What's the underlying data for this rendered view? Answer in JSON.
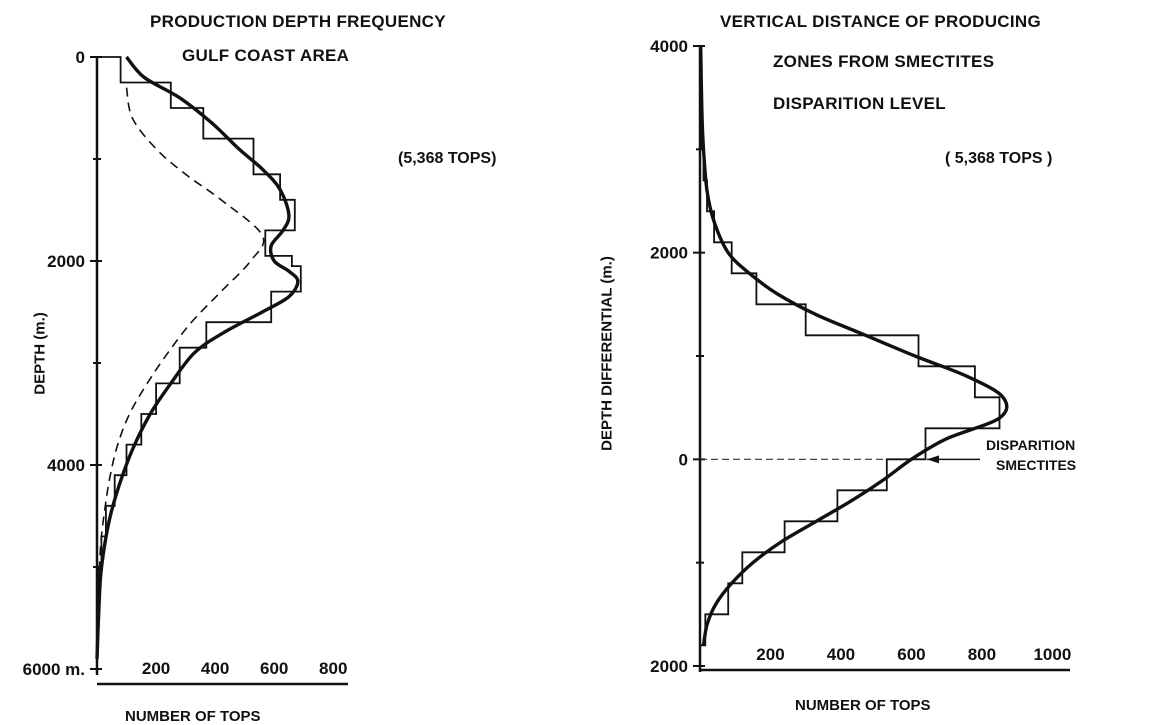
{
  "chart_data": [
    {
      "type": "line",
      "title": "PRODUCTION DEPTH FREQUENCY",
      "subtitle": "GULF COAST AREA",
      "annotation": "(5,368 TOPS)",
      "xlabel": "NUMBER OF TOPS",
      "ylabel": "DEPTH (m.)",
      "xlim": [
        0,
        850
      ],
      "ylim": [
        0,
        6000
      ],
      "y_inverted": true,
      "x_ticks": [
        200,
        400,
        600,
        800
      ],
      "y_ticks": [
        0,
        2000,
        4000,
        6000
      ],
      "y_tick_labels": [
        "0",
        "2000",
        "4000",
        "6000 m."
      ],
      "grid": false,
      "histogram": {
        "name": "",
        "bins": [
          0,
          250,
          500,
          800,
          1150,
          1400,
          1700,
          1950,
          2050,
          2300,
          2600,
          2850,
          3200,
          3500,
          3800,
          4100,
          4400,
          4700,
          5000,
          5600
        ],
        "values": [
          80,
          250,
          360,
          530,
          620,
          670,
          570,
          660,
          690,
          590,
          370,
          280,
          200,
          150,
          100,
          60,
          30,
          15,
          5
        ]
      },
      "series": [
        {
          "name": "",
          "style": "solid",
          "points": [
            [
              100,
              0
            ],
            [
              160,
              200
            ],
            [
              280,
              400
            ],
            [
              390,
              650
            ],
            [
              480,
              900
            ],
            [
              560,
              1100
            ],
            [
              620,
              1300
            ],
            [
              650,
              1550
            ],
            [
              630,
              1700
            ],
            [
              590,
              1850
            ],
            [
              600,
              2000
            ],
            [
              650,
              2100
            ],
            [
              680,
              2200
            ],
            [
              650,
              2350
            ],
            [
              560,
              2500
            ],
            [
              430,
              2700
            ],
            [
              330,
              2900
            ],
            [
              250,
              3200
            ],
            [
              180,
              3500
            ],
            [
              120,
              3850
            ],
            [
              75,
              4200
            ],
            [
              45,
              4500
            ],
            [
              25,
              4800
            ],
            [
              12,
              5100
            ],
            [
              5,
              5500
            ],
            [
              0,
              5900
            ]
          ]
        },
        {
          "name": "",
          "style": "dashed",
          "points": [
            [
              100,
              300
            ],
            [
              120,
              600
            ],
            [
              200,
              900
            ],
            [
              300,
              1150
            ],
            [
              420,
              1400
            ],
            [
              560,
              1750
            ],
            [
              520,
              2000
            ],
            [
              420,
              2300
            ],
            [
              320,
              2600
            ],
            [
              240,
              2900
            ],
            [
              170,
              3200
            ],
            [
              110,
              3500
            ],
            [
              70,
              3800
            ],
            [
              45,
              4100
            ],
            [
              28,
              4400
            ],
            [
              15,
              4700
            ],
            [
              8,
              5000
            ],
            [
              3,
              5300
            ]
          ]
        }
      ]
    },
    {
      "type": "line",
      "title": "VERTICAL DISTANCE OF PRODUCING",
      "subtitle": "ZONES FROM SMECTITES",
      "subtitle2": "DISPARITION LEVEL",
      "annotation": "( 5,368 TOPS )",
      "xlabel": "NUMBER OF TOPS",
      "ylabel": "DEPTH DIFFERENTIAL (m.)",
      "xlim": [
        0,
        1050
      ],
      "ylim": [
        -2000,
        4000
      ],
      "x_ticks": [
        200,
        400,
        600,
        800,
        1000
      ],
      "y_ticks": [
        -2000,
        0,
        2000,
        4000
      ],
      "y_tick_labels": [
        "2000",
        "0",
        "2000",
        "4000"
      ],
      "grid": false,
      "reference_line": {
        "y": 0,
        "label_line1": "DISPARITION",
        "label_line2": "SMECTITES"
      },
      "histogram": {
        "name": "",
        "bins": [
          -2000,
          -1800,
          -1500,
          -1200,
          -900,
          -600,
          -300,
          0,
          300,
          600,
          900,
          1200,
          1500,
          1800,
          2100,
          2400,
          2700,
          3000,
          3500,
          4000
        ],
        "values": [
          0,
          15,
          80,
          120,
          240,
          390,
          530,
          640,
          850,
          780,
          620,
          300,
          160,
          90,
          40,
          20,
          10,
          5,
          2
        ]
      },
      "series": [
        {
          "name": "",
          "style": "solid",
          "points": [
            [
              10,
              -1800
            ],
            [
              20,
              -1600
            ],
            [
              45,
              -1400
            ],
            [
              90,
              -1200
            ],
            [
              150,
              -1000
            ],
            [
              230,
              -800
            ],
            [
              330,
              -600
            ],
            [
              430,
              -400
            ],
            [
              520,
              -200
            ],
            [
              600,
              0
            ],
            [
              700,
              200
            ],
            [
              850,
              400
            ],
            [
              860,
              600
            ],
            [
              760,
              800
            ],
            [
              610,
              1000
            ],
            [
              470,
              1200
            ],
            [
              330,
              1400
            ],
            [
              220,
              1600
            ],
            [
              140,
              1800
            ],
            [
              80,
              2000
            ],
            [
              40,
              2300
            ],
            [
              20,
              2600
            ],
            [
              10,
              3000
            ],
            [
              5,
              3400
            ],
            [
              2,
              4000
            ]
          ]
        }
      ]
    }
  ]
}
